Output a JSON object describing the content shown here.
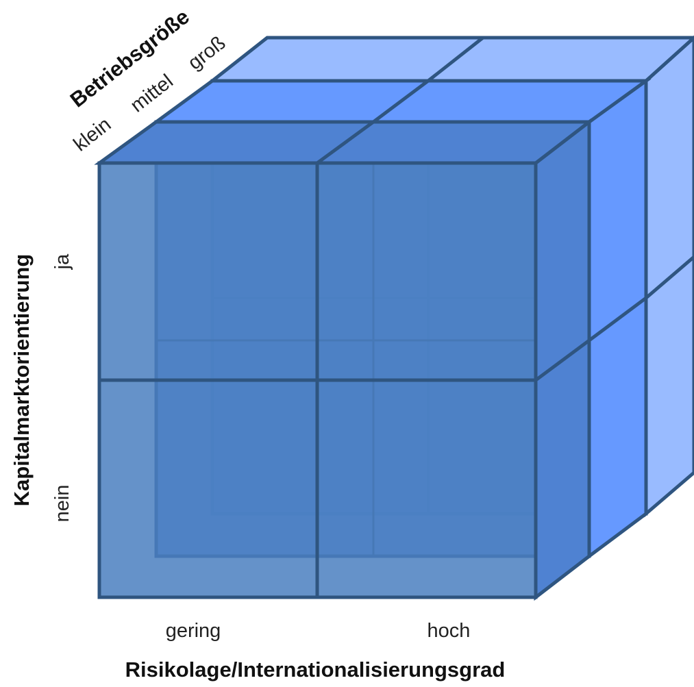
{
  "labels": {
    "top_axis_title": "Betriebsgröße",
    "top_axis_values": [
      "klein",
      "mittel",
      "groß"
    ],
    "left_axis_title": "Kapitalmarktorientierung",
    "left_axis_values": [
      "ja",
      "nein"
    ],
    "bottom_axis_title": "Risikolage/Internationalisierungsgrad",
    "bottom_axis_values": [
      "gering",
      "hoch"
    ]
  },
  "colors": {
    "front_face": "#4a7fc0",
    "middle_face": "#6699ff",
    "back_face": "#99bbff",
    "edge": "#2f5580"
  }
}
